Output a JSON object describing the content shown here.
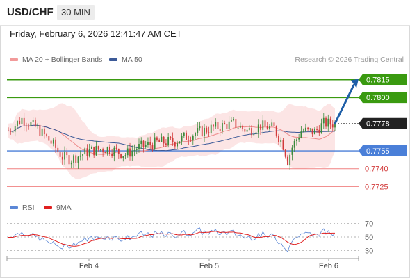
{
  "header": {
    "symbol": "USD/CHF",
    "timeframe": "30 MIN"
  },
  "datetime": "Friday, February 6, 2026 12:41:47 AM CET",
  "legend": {
    "ma20_label": "MA 20 + Bollinger Bands",
    "ma50_label": "MA 50",
    "credit": "Research © 2026 Trading Central"
  },
  "rsi_legend": {
    "rsi_label": "RSI",
    "ma_label": "9MA"
  },
  "colors": {
    "up": "#3a8a3a",
    "down": "#d23b3b",
    "target": "#3a9a10",
    "pivot": "#4a7fd8",
    "support": "#f08080",
    "arrow": "#1f5fa8",
    "ma20": "#ee8a8a",
    "ma50": "#3c5a98",
    "band": "#fbdcdc",
    "rsi": "#5b87d6",
    "rsi_ma": "#e02020"
  },
  "chart_data": [
    {
      "type": "candlestick",
      "title": "",
      "x_labels": [
        "Feb 4",
        "Feb 5",
        "Feb 6"
      ],
      "ylim": [
        0.7717,
        0.7827
      ],
      "last_price": "0.7778",
      "levels": [
        {
          "label": "0.7815",
          "value": 0.7815,
          "kind": "target"
        },
        {
          "label": "0.7800",
          "value": 0.78,
          "kind": "target"
        },
        {
          "label": "0.7755",
          "value": 0.7755,
          "kind": "pivot"
        },
        {
          "label": "0.7740",
          "value": 0.774,
          "kind": "support"
        },
        {
          "label": "0.7725",
          "value": 0.7725,
          "kind": "support"
        }
      ],
      "projection": {
        "from": 0.7778,
        "to": 0.7815,
        "direction": "up"
      },
      "indicators": [
        "MA 20 + Bollinger Bands",
        "MA 50"
      ],
      "grid": false
    },
    {
      "type": "line",
      "title": "RSI",
      "y_ticks": [
        "70",
        "50",
        "30"
      ],
      "ylim": [
        20,
        80
      ],
      "series": [
        {
          "name": "RSI",
          "last": 56
        },
        {
          "name": "9MA",
          "last": 55
        }
      ]
    }
  ]
}
